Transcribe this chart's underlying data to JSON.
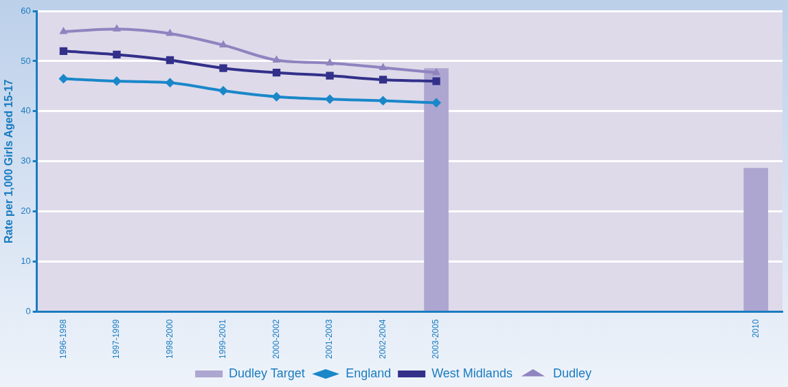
{
  "chart_data": {
    "type": "line",
    "ylabel": "Rate per 1,000 Girls Aged 15-17",
    "categories": [
      "1996-1998",
      "1997-1999",
      "1998-2000",
      "1999-2001",
      "2000-2002",
      "2001-2003",
      "2002-2004",
      "2003-2005",
      null,
      null,
      null,
      null,
      null,
      "2010"
    ],
    "series": [
      {
        "name": "Dudley Target",
        "type": "bar",
        "color": "#ada6d0",
        "values": [
          null,
          null,
          null,
          null,
          null,
          null,
          null,
          48.6,
          null,
          null,
          null,
          null,
          null,
          28.7
        ]
      },
      {
        "name": "England",
        "color": "#1a87c9",
        "marker": "diamond",
        "values": [
          46.5,
          46.0,
          45.7,
          44.1,
          42.9,
          42.4,
          42.1,
          41.7,
          null,
          null,
          null,
          null,
          null,
          null
        ]
      },
      {
        "name": "West Midlands",
        "color": "#33308a",
        "marker": "square",
        "values": [
          52.0,
          51.3,
          50.2,
          48.6,
          47.7,
          47.1,
          46.3,
          46.0,
          null,
          null,
          null,
          null,
          null,
          null
        ]
      },
      {
        "name": "Dudley",
        "color": "#8f84bf",
        "marker": "triangle",
        "values": [
          55.9,
          56.4,
          55.5,
          53.2,
          50.2,
          49.6,
          48.7,
          47.7,
          null,
          null,
          null,
          null,
          null,
          null
        ]
      }
    ],
    "ylim": [
      0,
      60
    ],
    "yticks": [
      0,
      10,
      20,
      30,
      40,
      50,
      60
    ],
    "grid": "y",
    "legend": "bottom"
  }
}
